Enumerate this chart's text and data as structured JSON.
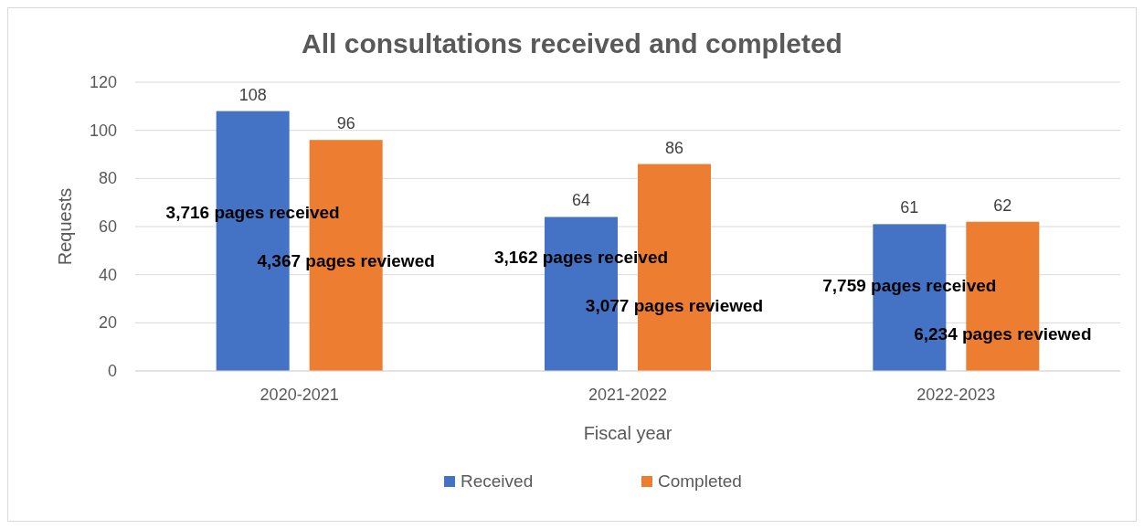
{
  "chart_data": {
    "type": "bar",
    "title": "All consultations received and completed",
    "xlabel": "Fiscal year",
    "ylabel": "Requests",
    "categories": [
      "2020-2021",
      "2021-2022",
      "2022-2023"
    ],
    "series": [
      {
        "name": "Received",
        "color": "#4472c4",
        "values": [
          108,
          64,
          61
        ]
      },
      {
        "name": "Completed",
        "color": "#ed7d31",
        "values": [
          96,
          86,
          62
        ]
      }
    ],
    "ylim": [
      0,
      120
    ],
    "yticks": [
      0,
      20,
      40,
      60,
      80,
      100,
      120
    ],
    "grid": "y",
    "legend": "bottom",
    "data_labels": true,
    "annotations": [
      "3,716 pages received",
      "4,367 pages reviewed",
      "3,162 pages received",
      "3,077 pages reviewed",
      "7,759 pages received",
      "6,234 pages reviewed"
    ]
  }
}
